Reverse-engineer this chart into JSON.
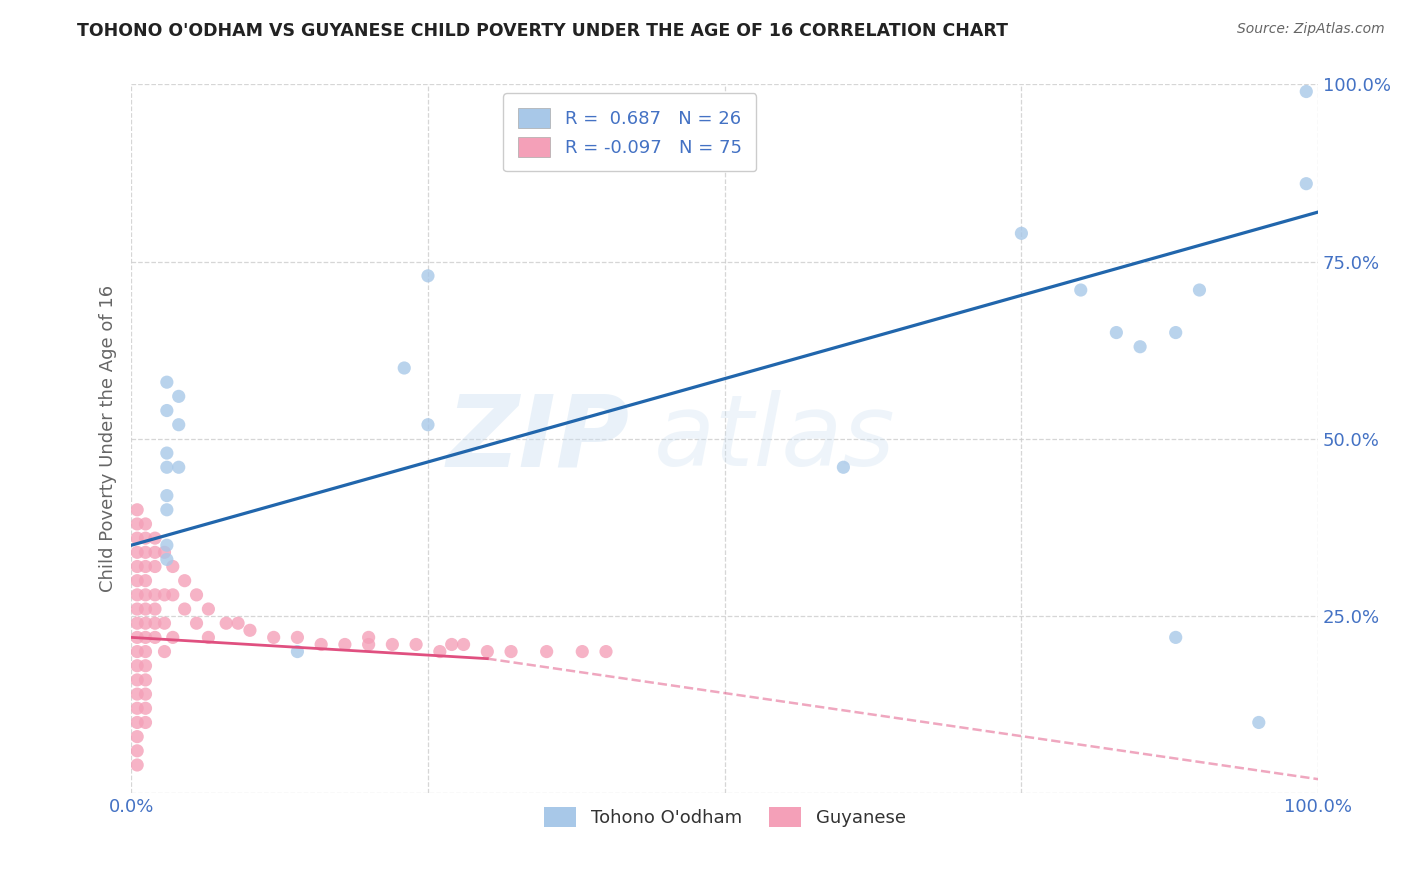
{
  "title": "TOHONO O'ODHAM VS GUYANESE CHILD POVERTY UNDER THE AGE OF 16 CORRELATION CHART",
  "source": "Source: ZipAtlas.com",
  "ylabel": "Child Poverty Under the Age of 16",
  "xlim": [
    0,
    1.0
  ],
  "ylim": [
    0,
    1.0
  ],
  "watermark": "ZIPatlas",
  "legend_r_blue": "0.687",
  "legend_n_blue": "26",
  "legend_r_pink": "-0.097",
  "legend_n_pink": "75",
  "blue_color": "#a8c8e8",
  "pink_color": "#f4a0b8",
  "blue_line_color": "#2166ac",
  "pink_line_color": "#e05080",
  "blue_line": [
    0.0,
    0.35,
    1.0,
    0.82
  ],
  "pink_line_solid": [
    0.0,
    0.22,
    0.3,
    0.19
  ],
  "pink_line_dash": [
    0.3,
    0.19,
    1.0,
    0.02
  ],
  "blue_scatter": [
    [
      0.03,
      0.58
    ],
    [
      0.03,
      0.54
    ],
    [
      0.04,
      0.56
    ],
    [
      0.04,
      0.52
    ],
    [
      0.03,
      0.48
    ],
    [
      0.03,
      0.46
    ],
    [
      0.04,
      0.46
    ],
    [
      0.03,
      0.42
    ],
    [
      0.03,
      0.4
    ],
    [
      0.03,
      0.35
    ],
    [
      0.03,
      0.33
    ],
    [
      0.23,
      0.6
    ],
    [
      0.25,
      0.73
    ],
    [
      0.25,
      0.52
    ],
    [
      0.14,
      0.2
    ],
    [
      0.6,
      0.46
    ],
    [
      0.75,
      0.79
    ],
    [
      0.8,
      0.71
    ],
    [
      0.83,
      0.65
    ],
    [
      0.85,
      0.63
    ],
    [
      0.88,
      0.22
    ],
    [
      0.88,
      0.65
    ],
    [
      0.9,
      0.71
    ],
    [
      0.95,
      0.1
    ],
    [
      0.99,
      0.99
    ],
    [
      0.99,
      0.86
    ]
  ],
  "pink_scatter": [
    [
      0.005,
      0.4
    ],
    [
      0.005,
      0.38
    ],
    [
      0.005,
      0.36
    ],
    [
      0.005,
      0.34
    ],
    [
      0.005,
      0.32
    ],
    [
      0.005,
      0.3
    ],
    [
      0.005,
      0.28
    ],
    [
      0.005,
      0.26
    ],
    [
      0.005,
      0.24
    ],
    [
      0.005,
      0.22
    ],
    [
      0.005,
      0.2
    ],
    [
      0.005,
      0.18
    ],
    [
      0.005,
      0.16
    ],
    [
      0.005,
      0.14
    ],
    [
      0.005,
      0.12
    ],
    [
      0.005,
      0.1
    ],
    [
      0.005,
      0.08
    ],
    [
      0.005,
      0.06
    ],
    [
      0.005,
      0.04
    ],
    [
      0.012,
      0.38
    ],
    [
      0.012,
      0.36
    ],
    [
      0.012,
      0.34
    ],
    [
      0.012,
      0.32
    ],
    [
      0.012,
      0.3
    ],
    [
      0.012,
      0.28
    ],
    [
      0.012,
      0.26
    ],
    [
      0.012,
      0.24
    ],
    [
      0.012,
      0.22
    ],
    [
      0.012,
      0.2
    ],
    [
      0.012,
      0.18
    ],
    [
      0.012,
      0.16
    ],
    [
      0.012,
      0.14
    ],
    [
      0.012,
      0.12
    ],
    [
      0.012,
      0.1
    ],
    [
      0.02,
      0.36
    ],
    [
      0.02,
      0.34
    ],
    [
      0.02,
      0.32
    ],
    [
      0.02,
      0.28
    ],
    [
      0.02,
      0.26
    ],
    [
      0.02,
      0.24
    ],
    [
      0.02,
      0.22
    ],
    [
      0.028,
      0.34
    ],
    [
      0.028,
      0.28
    ],
    [
      0.028,
      0.24
    ],
    [
      0.028,
      0.2
    ],
    [
      0.035,
      0.32
    ],
    [
      0.035,
      0.28
    ],
    [
      0.035,
      0.22
    ],
    [
      0.045,
      0.3
    ],
    [
      0.045,
      0.26
    ],
    [
      0.055,
      0.28
    ],
    [
      0.055,
      0.24
    ],
    [
      0.065,
      0.26
    ],
    [
      0.065,
      0.22
    ],
    [
      0.08,
      0.24
    ],
    [
      0.09,
      0.24
    ],
    [
      0.1,
      0.23
    ],
    [
      0.12,
      0.22
    ],
    [
      0.14,
      0.22
    ],
    [
      0.16,
      0.21
    ],
    [
      0.18,
      0.21
    ],
    [
      0.2,
      0.21
    ],
    [
      0.2,
      0.22
    ],
    [
      0.22,
      0.21
    ],
    [
      0.24,
      0.21
    ],
    [
      0.26,
      0.2
    ],
    [
      0.27,
      0.21
    ],
    [
      0.28,
      0.21
    ],
    [
      0.3,
      0.2
    ],
    [
      0.32,
      0.2
    ],
    [
      0.35,
      0.2
    ],
    [
      0.38,
      0.2
    ],
    [
      0.4,
      0.2
    ]
  ],
  "grid_color": "#cccccc",
  "background_color": "#ffffff",
  "title_color": "#222222",
  "axis_label_color": "#666666",
  "tick_label_color": "#4472c4",
  "source_color": "#666666"
}
